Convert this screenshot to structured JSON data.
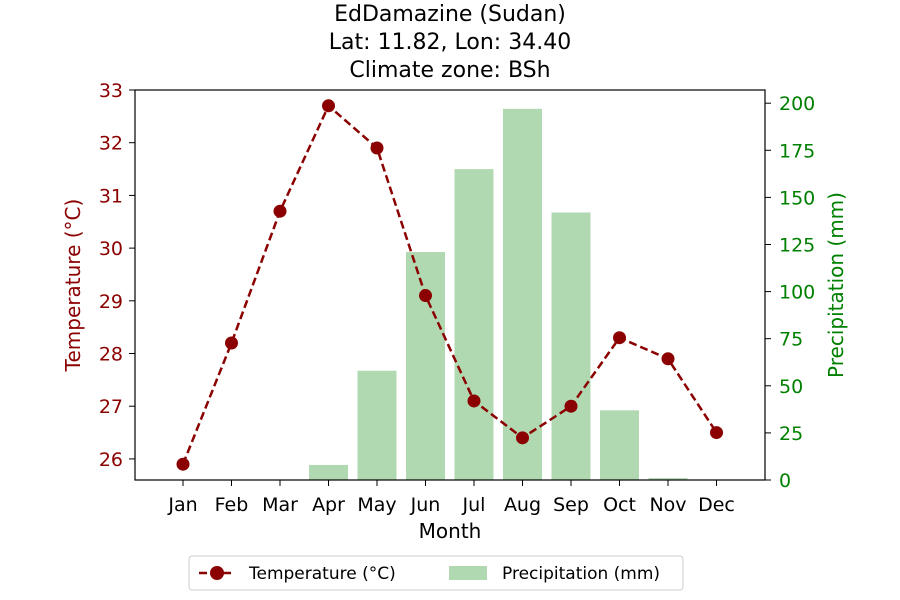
{
  "chart_data": {
    "type": "line+bar",
    "title_lines": [
      "EdDamazine (Sudan)",
      "Lat: 11.82, Lon: 34.40",
      "Climate zone: BSh"
    ],
    "xlabel": "Month",
    "categories": [
      "Jan",
      "Feb",
      "Mar",
      "Apr",
      "May",
      "Jun",
      "Jul",
      "Aug",
      "Sep",
      "Oct",
      "Nov",
      "Dec"
    ],
    "y_left": {
      "label": "Temperature (°C)",
      "ylim": [
        25.6,
        33.0
      ],
      "ticks": [
        26,
        27,
        28,
        29,
        30,
        31,
        32,
        33
      ],
      "color": "#8b0000"
    },
    "y_right": {
      "label": "Precipitation (mm)",
      "ylim": [
        0,
        207
      ],
      "ticks": [
        0,
        25,
        50,
        75,
        100,
        125,
        150,
        175,
        200
      ],
      "color": "#008000"
    },
    "series": [
      {
        "name": "Temperature (°C)",
        "type": "line",
        "axis": "left",
        "color": "#8b0000",
        "style": "dashed",
        "marker": "circle",
        "values": [
          25.9,
          28.2,
          30.7,
          32.7,
          31.9,
          29.1,
          27.1,
          26.4,
          27.0,
          28.3,
          27.9,
          26.5
        ]
      },
      {
        "name": "Precipitation (mm)",
        "type": "bar",
        "axis": "right",
        "color": "#b1d9b1",
        "values": [
          0,
          0,
          0,
          8,
          58,
          121,
          165,
          197,
          142,
          37,
          1,
          0
        ]
      }
    ],
    "legend_position": "bottom-center"
  }
}
